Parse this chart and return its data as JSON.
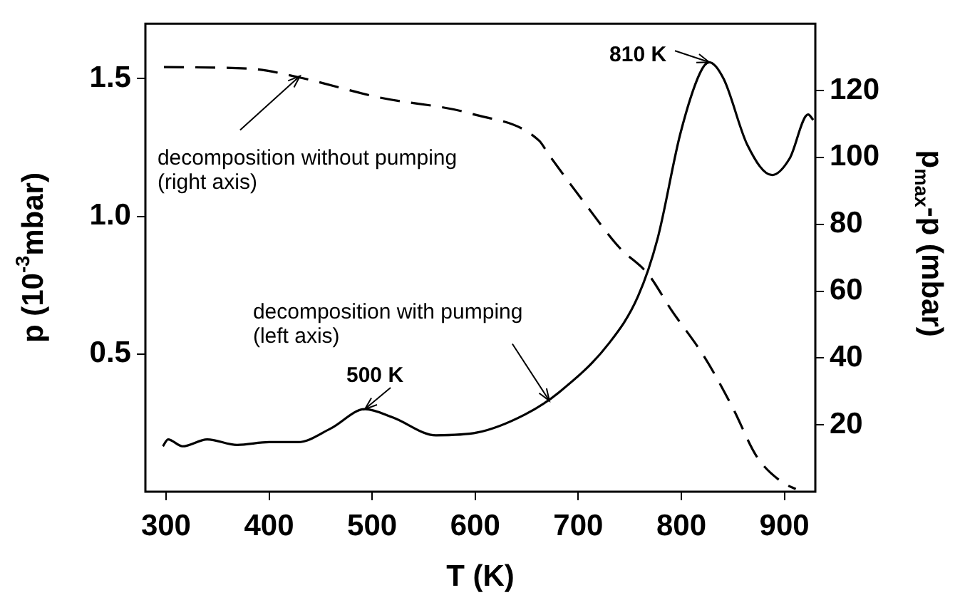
{
  "chart_data": {
    "type": "line",
    "xlabel": "T (K)",
    "ylabel": "p (10$^{-3}$mbar)",
    "y2label": "p$_{max}$-p (mbar)",
    "xlim": [
      280,
      930
    ],
    "xticks": [
      300,
      400,
      500,
      600,
      700,
      800,
      900
    ],
    "ylim": [
      0,
      1.7
    ],
    "yticks": [
      0.5,
      {
        "value": 1,
        "label": "1.0"
      },
      1.5
    ],
    "y2lim": [
      0,
      140
    ],
    "y2ticks": [
      20,
      40,
      60,
      80,
      100,
      120
    ],
    "grid": false,
    "legend": false,
    "marker": "none",
    "series": [
      {
        "color": "#000000",
        "line_style": "solid",
        "x": [
          297,
          302,
          316,
          340,
          369,
          400,
          428,
          460,
          493,
          520,
          562,
          602,
          648,
          681,
          730,
          758,
          777,
          799,
          818,
          827,
          841,
          864,
          888,
          905,
          923,
          928
        ],
        "values": [
          0.165,
          0.19,
          0.165,
          0.19,
          0.17,
          0.18,
          0.18,
          0.23,
          0.3,
          0.27,
          0.205,
          0.215,
          0.28,
          0.36,
          0.54,
          0.71,
          0.92,
          1.3,
          1.52,
          1.56,
          1.5,
          1.26,
          1.15,
          1.21,
          1.37,
          1.35
        ]
      },
      {
        "color": "#000000",
        "line_style": "dashed",
        "axis": "y2",
        "x": [
          298,
          383,
          428,
          506,
          597,
          662,
          671,
          707,
          740,
          768,
          790,
          823,
          850,
          873,
          897,
          911
        ],
        "values": [
          127,
          126.5,
          124,
          118,
          113,
          105,
          101,
          86,
          73,
          65,
          54.5,
          40,
          25,
          10.6,
          3,
          0.8
        ]
      }
    ],
    "annotations": [
      {
        "text": "500 K",
        "x": 493,
        "y": 0.3
      },
      {
        "text": "810 K",
        "x": 827,
        "y": 1.56
      },
      {
        "text": "decomposition without pumping\n(right axis)",
        "x": 430,
        "y": 1.51
      },
      {
        "text": "decomposition with pumping\n(left axis)",
        "x": 672,
        "y": 0.33
      }
    ]
  }
}
